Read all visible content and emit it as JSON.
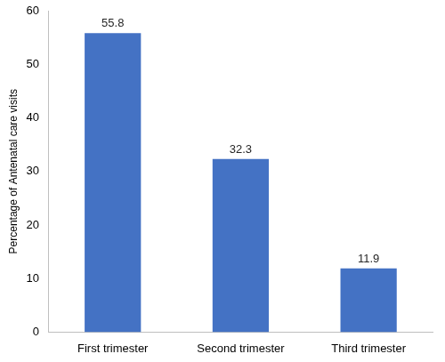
{
  "chart_data": {
    "type": "bar",
    "y_label": "Percentage of Antenatal care visits",
    "categories": [
      "First trimester",
      "Second trimester",
      "Third trimester"
    ],
    "values": [
      55.8,
      32.3,
      11.9
    ],
    "color": "#4472c4",
    "ylim": [
      0,
      60
    ],
    "yticks": [
      0,
      10,
      20,
      30,
      40,
      50,
      60
    ],
    "grid": false,
    "data_labels": true
  }
}
